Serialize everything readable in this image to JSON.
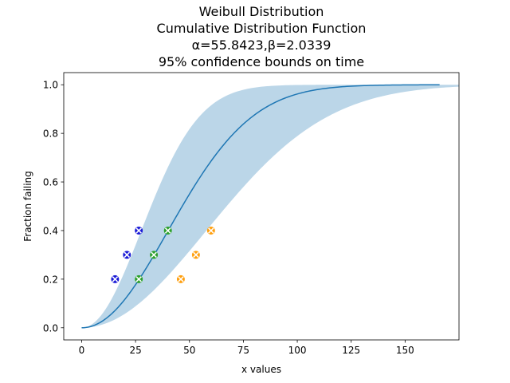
{
  "chart_data": {
    "type": "line",
    "title_lines": [
      "Weibull Distribution",
      "Cumulative Distribution Function",
      "α=55.8423,β=2.0339",
      "95% confidence bounds on time"
    ],
    "xlabel": "x values",
    "ylabel": "Fraction failing",
    "xlim": [
      -8.3,
      175
    ],
    "ylim": [
      -0.05,
      1.05
    ],
    "x_ticks": [
      0,
      25,
      50,
      75,
      100,
      125,
      150
    ],
    "y_ticks": [
      0.0,
      0.2,
      0.4,
      0.6,
      0.8,
      1.0
    ],
    "x_tick_labels": [
      "0",
      "25",
      "50",
      "75",
      "100",
      "125",
      "150"
    ],
    "y_tick_labels": [
      "0.0",
      "0.2",
      "0.4",
      "0.6",
      "0.8",
      "1.0"
    ],
    "grid": false,
    "legend": "none",
    "cdf_line": {
      "alpha": 55.8423,
      "beta": 2.0339,
      "x_max": 166,
      "color": "#1f77b4"
    },
    "confidence_band": {
      "color": "#1f77b4",
      "opacity": 0.3,
      "lower_bound_scale": 38.5,
      "upper_bound_scale": 80.5,
      "x_max": 175
    },
    "series": [
      {
        "marker": "blue-x-circle",
        "face_color": "#1a1ad6",
        "points": [
          [
            15.5,
            0.2
          ],
          [
            21,
            0.3
          ],
          [
            26.5,
            0.4
          ]
        ]
      },
      {
        "marker": "green-x-circle",
        "face_color": "#2ca02c",
        "points": [
          [
            26.5,
            0.2
          ],
          [
            33.5,
            0.3
          ],
          [
            40,
            0.4
          ]
        ]
      },
      {
        "marker": "orange-x-circle",
        "face_color": "#ff9f0e",
        "points": [
          [
            46,
            0.2
          ],
          [
            53,
            0.3
          ],
          [
            60,
            0.4
          ]
        ]
      }
    ]
  }
}
